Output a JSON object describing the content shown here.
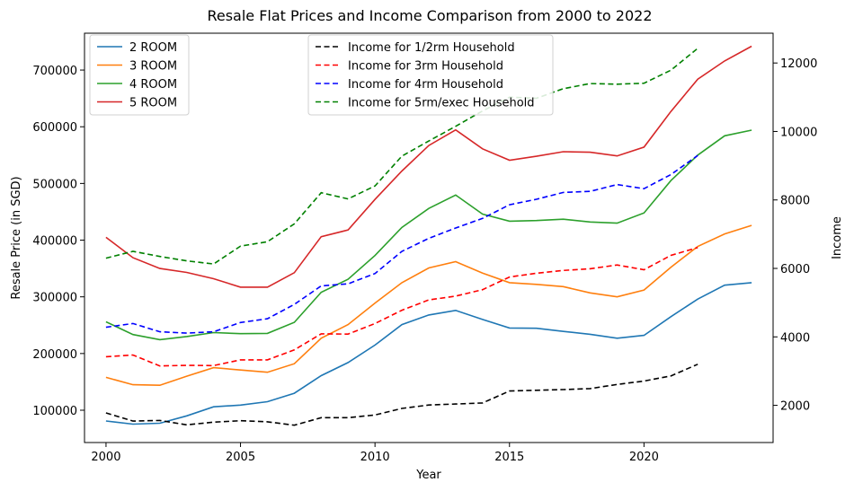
{
  "chart_data": {
    "type": "line",
    "title": "Resale Flat Prices and Income Comparison from 2000 to 2022",
    "xlabel": "Year",
    "ylabel": "Resale Price (in SGD)",
    "y2label": "Income",
    "xlim": [
      1999.2,
      2024.8
    ],
    "ylim": [
      43000,
      765000
    ],
    "y2lim": [
      914,
      12870
    ],
    "x_ticks": [
      "2000",
      "2005",
      "2010",
      "2015",
      "2020"
    ],
    "y_ticks": [
      "100000",
      "200000",
      "300000",
      "400000",
      "500000",
      "600000",
      "700000"
    ],
    "y2_ticks": [
      "2000",
      "4000",
      "6000",
      "8000",
      "10000",
      "12000"
    ],
    "grid": false,
    "legend_left_placement": "upper-left",
    "legend_right_placement": "upper-center",
    "price_series": [
      {
        "name": "2 ROOM",
        "color": "#1f77b4",
        "x": [
          2000,
          2001,
          2002,
          2003,
          2004,
          2005,
          2006,
          2007,
          2008,
          2009,
          2010,
          2011,
          2012,
          2013,
          2014,
          2015,
          2016,
          2017,
          2018,
          2019,
          2020,
          2021,
          2022,
          2023,
          2024
        ],
        "values": [
          81000,
          75500,
          77000,
          90000,
          106000,
          109000,
          115000,
          130000,
          161000,
          184000,
          215000,
          251000,
          268000,
          276000,
          260000,
          245000,
          244500,
          239000,
          234000,
          227000,
          232000,
          265000,
          296000,
          320500,
          325000
        ]
      },
      {
        "name": "3 ROOM",
        "color": "#ff7f0e",
        "x": [
          2000,
          2001,
          2002,
          2003,
          2004,
          2005,
          2006,
          2007,
          2008,
          2009,
          2010,
          2011,
          2012,
          2013,
          2014,
          2015,
          2016,
          2017,
          2018,
          2019,
          2020,
          2021,
          2022,
          2023,
          2024
        ],
        "values": [
          158000,
          145000,
          144000,
          160000,
          175000,
          171000,
          167000,
          182000,
          227000,
          251000,
          289000,
          325000,
          351000,
          362000,
          342000,
          325000,
          322000,
          318000,
          307000,
          300000,
          312000,
          352000,
          389000,
          411000,
          426000
        ]
      },
      {
        "name": "4 ROOM",
        "color": "#2ca02c",
        "x": [
          2000,
          2001,
          2002,
          2003,
          2004,
          2005,
          2006,
          2007,
          2008,
          2009,
          2010,
          2011,
          2012,
          2013,
          2014,
          2015,
          2016,
          2017,
          2018,
          2019,
          2020,
          2021,
          2022,
          2023,
          2024
        ],
        "values": [
          256000,
          233500,
          224500,
          230000,
          237000,
          235000,
          235500,
          255000,
          308000,
          331000,
          373000,
          422500,
          456000,
          479500,
          446000,
          433500,
          434500,
          437000,
          432000,
          430000,
          448000,
          505000,
          550000,
          584000,
          594000
        ]
      },
      {
        "name": "5 ROOM",
        "color": "#d62728",
        "x": [
          2000,
          2001,
          2002,
          2003,
          2004,
          2005,
          2006,
          2007,
          2008,
          2009,
          2010,
          2011,
          2012,
          2013,
          2014,
          2015,
          2016,
          2017,
          2018,
          2019,
          2020,
          2021,
          2022,
          2023,
          2024
        ],
        "values": [
          405000,
          369000,
          350000,
          343000,
          332000,
          317000,
          317000,
          342500,
          406000,
          418000,
          472000,
          522000,
          567000,
          594500,
          561000,
          541000,
          548000,
          556000,
          555000,
          548500,
          564000,
          627000,
          684000,
          716000,
          742000
        ]
      }
    ],
    "income_series": [
      {
        "name": "Income for 1/2rm Household",
        "color": "#000000",
        "x": [
          2000,
          2001,
          2002,
          2003,
          2004,
          2005,
          2006,
          2007,
          2008,
          2009,
          2010,
          2011,
          2012,
          2013,
          2014,
          2015,
          2016,
          2017,
          2018,
          2019,
          2020,
          2021,
          2022
        ],
        "values": [
          1780,
          1540,
          1560,
          1430,
          1510,
          1550,
          1520,
          1420,
          1640,
          1640,
          1720,
          1910,
          2010,
          2040,
          2070,
          2420,
          2440,
          2460,
          2490,
          2610,
          2710,
          2860,
          3200
        ]
      },
      {
        "name": "Income for 3rm Household",
        "color": "#ff0000",
        "x": [
          2000,
          2001,
          2002,
          2003,
          2004,
          2005,
          2006,
          2007,
          2008,
          2009,
          2010,
          2011,
          2012,
          2013,
          2014,
          2015,
          2016,
          2017,
          2018,
          2019,
          2020,
          2021,
          2022
        ],
        "values": [
          3420,
          3470,
          3150,
          3170,
          3160,
          3330,
          3330,
          3620,
          4090,
          4080,
          4390,
          4780,
          5080,
          5190,
          5380,
          5750,
          5860,
          5940,
          5990,
          6100,
          5960,
          6380,
          6610
        ]
      },
      {
        "name": "Income for 4rm Household",
        "color": "#0000ff",
        "x": [
          2000,
          2001,
          2002,
          2003,
          2004,
          2005,
          2006,
          2007,
          2008,
          2009,
          2010,
          2011,
          2012,
          2013,
          2014,
          2015,
          2016,
          2017,
          2018,
          2019,
          2020,
          2021,
          2022
        ],
        "values": [
          4280,
          4390,
          4150,
          4110,
          4150,
          4420,
          4530,
          4950,
          5490,
          5550,
          5850,
          6500,
          6880,
          7180,
          7460,
          7860,
          8020,
          8220,
          8250,
          8450,
          8330,
          8740,
          9300
        ]
      },
      {
        "name": "Income for 5rm/exec Household",
        "color": "#008000",
        "x": [
          2000,
          2001,
          2002,
          2003,
          2004,
          2005,
          2006,
          2007,
          2008,
          2009,
          2010,
          2011,
          2012,
          2013,
          2014,
          2015,
          2016,
          2017,
          2018,
          2019,
          2020,
          2021,
          2022
        ],
        "values": [
          6300,
          6500,
          6350,
          6220,
          6130,
          6650,
          6780,
          7300,
          8210,
          8030,
          8410,
          9280,
          9720,
          10150,
          10600,
          11000,
          10970,
          11250,
          11400,
          11380,
          11410,
          11790,
          12430
        ]
      }
    ]
  }
}
